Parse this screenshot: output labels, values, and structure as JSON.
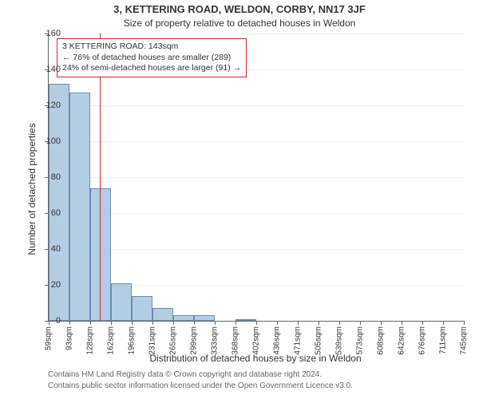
{
  "title": "3, KETTERING ROAD, WELDON, CORBY, NN17 3JF",
  "subtitle": "Size of property relative to detached houses in Weldon",
  "ylabel": "Number of detached properties",
  "xlabel": "Distribution of detached houses by size in Weldon",
  "footnote1": "Contains HM Land Registry data © Crown copyright and database right 2024.",
  "footnote2": "Contains public sector information licensed under the Open Government Licence v3.0.",
  "callout": {
    "line1": "3 KETTERING ROAD: 143sqm",
    "line2": "← 76% of detached houses are smaller (289)",
    "line3": "24% of semi-detached houses are larger (91) →"
  },
  "chart": {
    "type": "histogram",
    "ylim": [
      0,
      160
    ],
    "ytick_step": 20,
    "background_color": "#ffffff",
    "grid_color": "#f0f0f0",
    "axis_color": "#666666",
    "bar_fill": "#b3cde3",
    "bar_border": "#6a8bb5",
    "highlight_color": "#d62728",
    "highlight_x": 143,
    "xticks": [
      59,
      93,
      128,
      162,
      196,
      231,
      265,
      299,
      333,
      368,
      402,
      436,
      471,
      505,
      539,
      573,
      608,
      642,
      676,
      711,
      745
    ],
    "xtick_suffix": "sqm",
    "bin_start": 59,
    "bin_width": 34.3,
    "values": [
      132,
      127,
      74,
      21,
      14,
      7,
      3,
      3,
      0,
      1,
      0,
      0,
      0,
      0,
      0,
      0,
      0,
      0,
      0,
      0
    ],
    "title_fontsize": 13,
    "subtitle_fontsize": 12,
    "label_fontsize": 12,
    "tick_fontsize": 11
  }
}
